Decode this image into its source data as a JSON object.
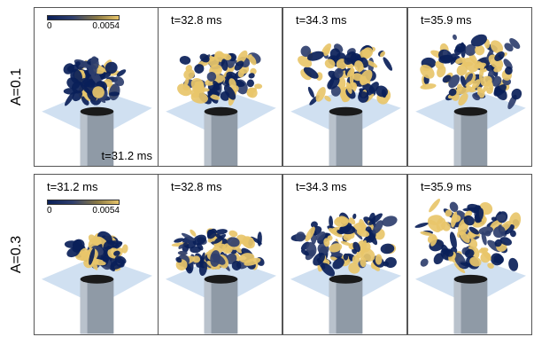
{
  "rows": [
    {
      "label": "A=0.1",
      "colorbar": {
        "min": "0",
        "max": "0.0054"
      },
      "panels": [
        {
          "time": "t=31.2 ms"
        },
        {
          "time": "t=32.8 ms"
        },
        {
          "time": "t=34.3 ms"
        },
        {
          "time": "t=35.9 ms"
        }
      ]
    },
    {
      "label": "A=0.3",
      "colorbar": {
        "min": "0",
        "max": "0.0054"
      },
      "panels": [
        {
          "time": "t=31.2 ms"
        },
        {
          "time": "t=32.8 ms"
        },
        {
          "time": "t=34.3 ms"
        },
        {
          "time": "t=35.9 ms"
        }
      ]
    }
  ],
  "colors": {
    "low": "#0a1f59",
    "mid": "#2f3f6e",
    "high": "#e8c56a",
    "plane": "#a9c6e6",
    "cylinder": "#8f9aa6"
  }
}
